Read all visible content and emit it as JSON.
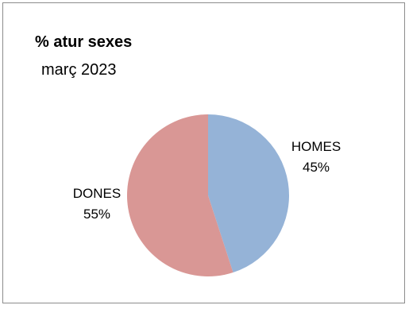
{
  "chart_data": {
    "type": "pie",
    "title": "% atur sexes",
    "subtitle": "març 2023",
    "slices": [
      {
        "label": "HOMES",
        "percent_label": "45%",
        "value": 45,
        "color": "#95b3d7"
      },
      {
        "label": "DONES",
        "percent_label": "55%",
        "value": 55,
        "color": "#d99795"
      }
    ],
    "legend": "none"
  }
}
